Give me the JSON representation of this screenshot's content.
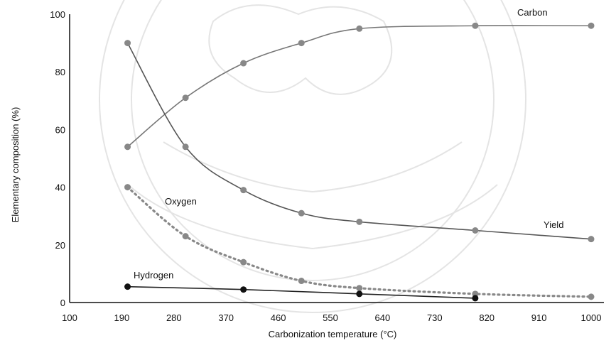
{
  "chart_data": {
    "type": "line",
    "title": "",
    "xlabel": "Carbonization temperature (°C)",
    "ylabel": "Elementary composition (%)",
    "xlim": [
      100,
      1000
    ],
    "ylim": [
      0,
      100
    ],
    "x_ticks": [
      "100",
      "190",
      "280",
      "370",
      "460",
      "550",
      "640",
      "730",
      "820",
      "910",
      "1000"
    ],
    "y_ticks": [
      "0",
      "20",
      "40",
      "60",
      "80",
      "100"
    ],
    "grid": false,
    "legend": "inline-labels",
    "series": [
      {
        "name": "Carbon",
        "color": "#777777",
        "marker": "#888888",
        "dash": "solid",
        "x": [
          200,
          300,
          400,
          500,
          600,
          800,
          1000
        ],
        "y": [
          54,
          71,
          83,
          90,
          95,
          96,
          96
        ]
      },
      {
        "name": "Yield",
        "color": "#555555",
        "marker": "#888888",
        "dash": "solid",
        "x": [
          200,
          300,
          400,
          500,
          600,
          800,
          1000
        ],
        "y": [
          90,
          54,
          39,
          31,
          28,
          25,
          22
        ]
      },
      {
        "name": "Oxygen",
        "color": "#888888",
        "marker": "#888888",
        "dash": "dotted",
        "x": [
          200,
          300,
          400,
          500,
          600,
          800,
          1000
        ],
        "y": [
          40,
          23,
          14,
          7.5,
          5,
          3,
          2
        ]
      },
      {
        "name": "Hydrogen",
        "color": "#222222",
        "marker": "#111111",
        "dash": "solid",
        "x": [
          200,
          400,
          600,
          800
        ],
        "y": [
          5.5,
          4.5,
          3,
          1.5
        ]
      }
    ]
  }
}
